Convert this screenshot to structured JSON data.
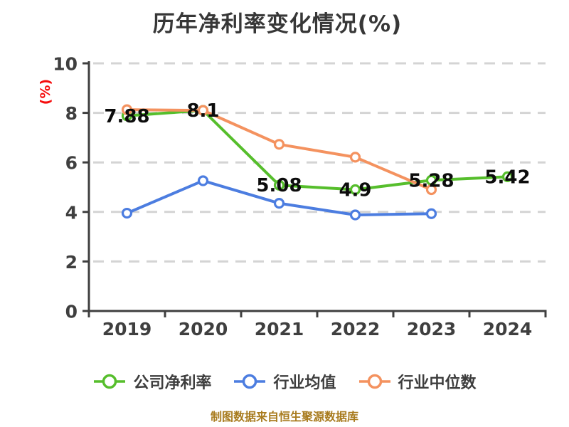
{
  "chart_data": {
    "type": "line",
    "title": "历年净利率变化情况(%)",
    "ylabel": "(%)",
    "xlabel": "",
    "categories": [
      "2019",
      "2020",
      "2021",
      "2022",
      "2023",
      "2024"
    ],
    "ylim": [
      0,
      10
    ],
    "yticks": [
      0,
      2,
      4,
      6,
      8,
      10
    ],
    "grid": "horizontal-dashed",
    "legend_position": "bottom",
    "source_note": "制图数据来自恒生聚源数据库",
    "series": [
      {
        "name": "公司净利率",
        "color": "#56BE2C",
        "marker": "white-circle",
        "values": [
          7.88,
          8.1,
          5.08,
          4.9,
          5.28,
          5.42
        ],
        "point_labels": [
          "7.88",
          "8.1",
          "5.08",
          "4.9",
          "5.28",
          "5.42"
        ]
      },
      {
        "name": "行业均值",
        "color": "#4C7DE0",
        "marker": "white-circle",
        "values": [
          3.95,
          5.26,
          4.35,
          3.88,
          3.93,
          null
        ],
        "point_labels": []
      },
      {
        "name": "行业中位数",
        "color": "#F4925F",
        "marker": "white-circle",
        "values": [
          8.13,
          8.1,
          6.73,
          6.21,
          4.9,
          null
        ],
        "point_labels": []
      }
    ],
    "style_colors": {
      "background": "#FFFFFF",
      "title": "#373737",
      "axis": "#3F3F3F",
      "grid": "#D4D4D4",
      "ylabel": "#F50D0D",
      "point_label": "#0C0C0C",
      "legend_text": "#3E3E3E",
      "footer": "#A87B1E"
    }
  }
}
